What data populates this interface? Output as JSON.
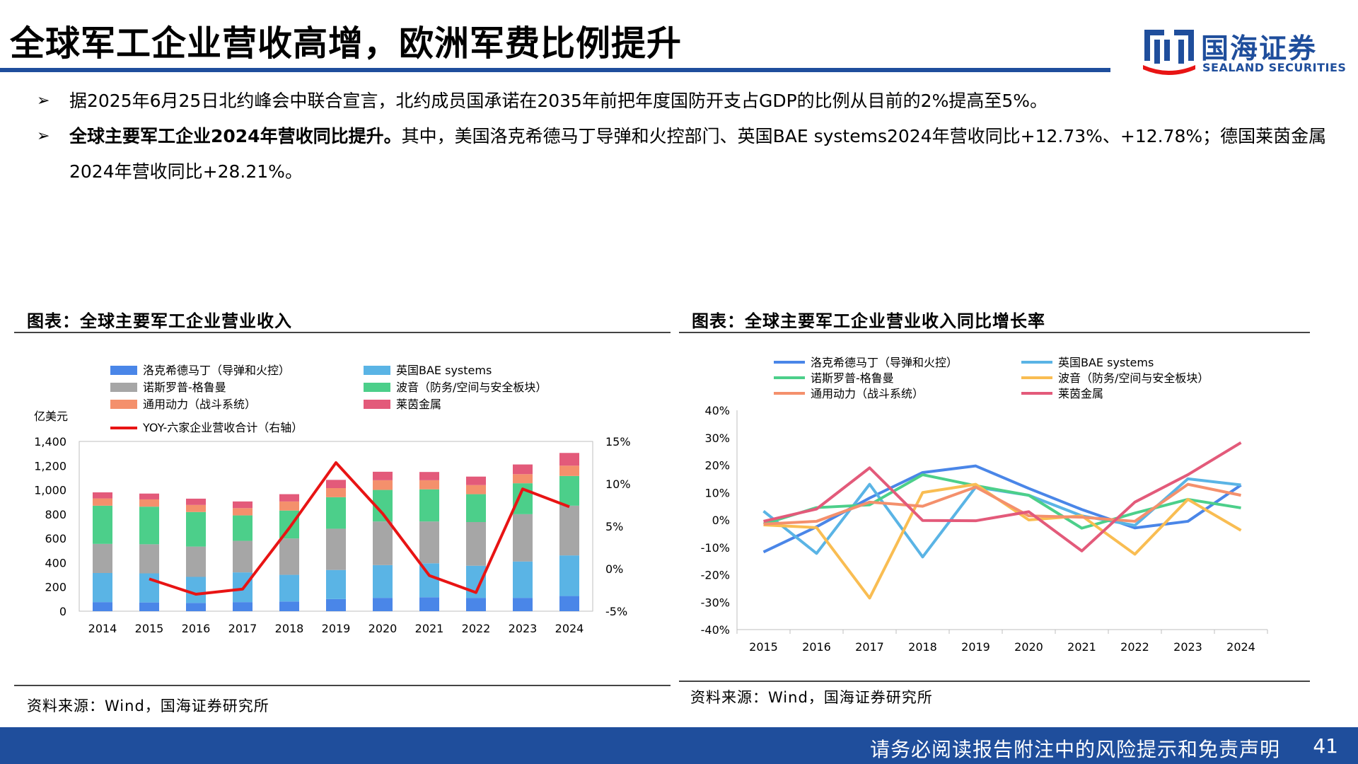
{
  "header": {
    "title": "全球军工企业营收高增，欧洲军费比例提升",
    "logo_cn": "国海证券",
    "logo_en": "SEALAND SECURITIES",
    "brand_color": "#1f4e9c"
  },
  "bullets": [
    {
      "bold": "",
      "text": "据2025年6月25日北约峰会中联合宣言，北约成员国承诺在2035年前把年度国防开支占GDP的比例从目前的2%提高至5%。"
    },
    {
      "bold": "全球主要军工企业2024年营收同比提升。",
      "text": "其中，美国洛克希德马丁导弹和火控部门、英国BAE systems2024年营收同比+12.73%、+12.78%；德国莱茵金属2024年营收同比+28.21%。"
    }
  ],
  "left_panel": {
    "title": "图表：全球主要军工企业营业收入",
    "source": "资料来源：Wind，国海证券研究所"
  },
  "right_panel": {
    "title": "图表：全球主要军工企业营业收入同比增长率",
    "source": "资料来源：Wind，国海证券研究所"
  },
  "footer": {
    "disclaimer": "请务必阅读报告附注中的风险提示和免责声明",
    "page": "41"
  },
  "chart_data": [
    {
      "type": "bar",
      "stacked": true,
      "categories": [
        "2014",
        "2015",
        "2016",
        "2017",
        "2018",
        "2019",
        "2020",
        "2021",
        "2022",
        "2023",
        "2024"
      ],
      "ylabel": "亿美元",
      "ylim": [
        0,
        1400
      ],
      "yticks": [
        "0",
        "200",
        "400",
        "600",
        "800",
        "1,000",
        "1,200",
        "1,400"
      ],
      "ylim_right": [
        -5,
        15
      ],
      "yticks_right": [
        "-5%",
        "0%",
        "5%",
        "10%",
        "15%"
      ],
      "series": [
        {
          "name": "洛克希德马丁（导弹和火控）",
          "color": "#4a86e8",
          "values": [
            75,
            72,
            68,
            75,
            80,
            100,
            110,
            115,
            110,
            110,
            125
          ]
        },
        {
          "name": "英国BAE systems",
          "color": "#5ab4e5",
          "values": [
            240,
            240,
            215,
            245,
            220,
            240,
            270,
            280,
            265,
            300,
            335
          ]
        },
        {
          "name": "诺斯罗普-格鲁曼",
          "color": "#a6a6a6",
          "values": [
            240,
            240,
            250,
            260,
            300,
            340,
            360,
            345,
            360,
            390,
            410
          ]
        },
        {
          "name": "波音（防务/空间与安全板块）",
          "color": "#4ccf8a",
          "values": [
            315,
            310,
            285,
            210,
            230,
            260,
            260,
            265,
            230,
            255,
            245
          ]
        },
        {
          "name": "通用动力（战斗系统）",
          "color": "#f4906c",
          "values": [
            60,
            60,
            58,
            60,
            75,
            75,
            80,
            75,
            75,
            75,
            85
          ]
        },
        {
          "name": "莱茵金属",
          "color": "#e35a7a",
          "values": [
            50,
            48,
            52,
            55,
            60,
            68,
            70,
            68,
            70,
            80,
            105
          ]
        }
      ],
      "line": {
        "name": "YOY-六家企业营收合计（右轴）",
        "color": "#e81414",
        "x": [
          "2015",
          "2016",
          "2017",
          "2018",
          "2019",
          "2020",
          "2021",
          "2022",
          "2023",
          "2024"
        ],
        "values": [
          -1.2,
          -3.0,
          -2.4,
          4.8,
          12.5,
          6.5,
          -0.8,
          -2.8,
          9.4,
          7.3
        ]
      }
    },
    {
      "type": "line",
      "categories": [
        "2015",
        "2016",
        "2017",
        "2018",
        "2019",
        "2020",
        "2021",
        "2022",
        "2023",
        "2024"
      ],
      "ylim": [
        -40,
        40
      ],
      "yticks": [
        "40%",
        "30%",
        "20%",
        "10%",
        "0%",
        "-10%",
        "-20%",
        "-30%",
        "-40%"
      ],
      "series": [
        {
          "name": "洛克希德马丁（导弹和火控）",
          "color": "#4a86e8",
          "values": [
            -11.7,
            -2.5,
            8.0,
            17.3,
            19.7,
            11.5,
            3.8,
            -2.9,
            -0.5,
            12.73
          ]
        },
        {
          "name": "英国BAE systems",
          "color": "#5ab4e5",
          "values": [
            3.2,
            -12.2,
            13.0,
            -13.5,
            12.0,
            9.0,
            1.5,
            -2.0,
            15.0,
            12.78
          ]
        },
        {
          "name": "诺斯罗普-格鲁曼",
          "color": "#4ccf8a",
          "values": [
            -1.5,
            4.5,
            5.5,
            16.5,
            12.5,
            9.0,
            -3.0,
            2.5,
            7.5,
            4.4
          ]
        },
        {
          "name": "波音（防务/空间与安全板块）",
          "color": "#f9bd52",
          "values": [
            -1.8,
            -2.8,
            -28.5,
            10.0,
            13.0,
            0.0,
            1.5,
            -12.5,
            7.5,
            -3.8
          ]
        },
        {
          "name": "通用动力（战斗系统）",
          "color": "#f4906c",
          "values": [
            -1.5,
            -0.5,
            6.5,
            5.0,
            12.0,
            1.5,
            1.0,
            -0.5,
            13.0,
            9.0
          ]
        },
        {
          "name": "莱茵金属",
          "color": "#e35a7a",
          "values": [
            -0.5,
            4.0,
            19.0,
            -0.2,
            -0.3,
            3.0,
            -11.3,
            6.5,
            16.5,
            28.21
          ]
        }
      ]
    }
  ]
}
